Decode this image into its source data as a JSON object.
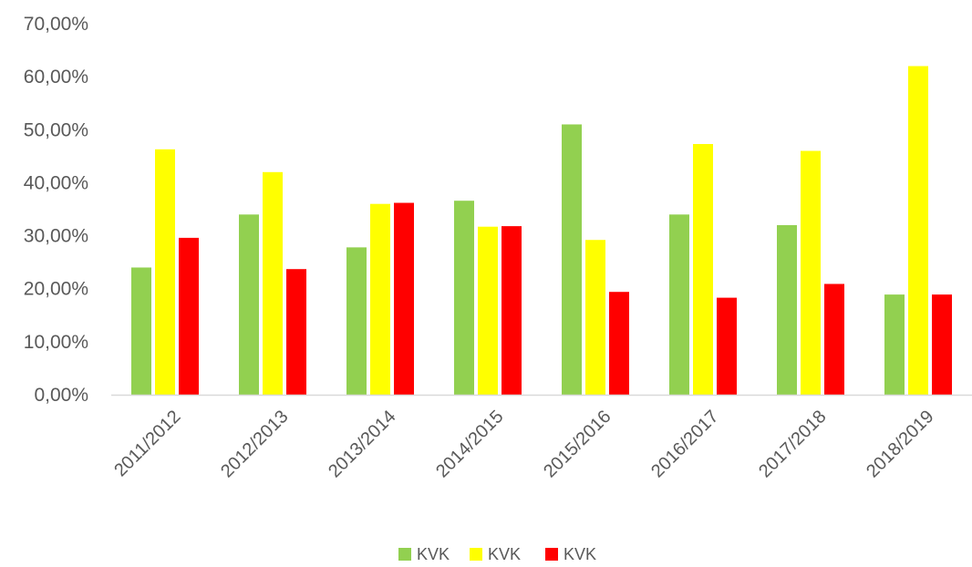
{
  "chart_data": {
    "type": "bar",
    "categories": [
      "2011/2012",
      "2012/2013",
      "2013/2014",
      "2014/2015",
      "2015/2016",
      "2016/2017",
      "2017/2018",
      "2018/2019"
    ],
    "series": [
      {
        "name": "KVK",
        "color": "#92d050",
        "values": [
          24.0,
          34.0,
          27.8,
          36.6,
          51.0,
          34.0,
          32.0,
          18.9
        ]
      },
      {
        "name": "KVK",
        "color": "#ffff00",
        "values": [
          46.3,
          42.0,
          36.0,
          31.7,
          29.2,
          47.3,
          46.0,
          62.0
        ]
      },
      {
        "name": "KVK",
        "color": "#ff0000",
        "values": [
          29.6,
          23.7,
          36.2,
          31.8,
          19.4,
          18.3,
          20.9,
          18.9
        ]
      }
    ],
    "yticks": [
      "0,00%",
      "10,00%",
      "20,00%",
      "30,00%",
      "40,00%",
      "50,00%",
      "60,00%",
      "70,00%"
    ],
    "ylim": [
      0,
      70
    ],
    "title": "",
    "xlabel": "",
    "ylabel": "",
    "grid": false,
    "legend_position": "bottom"
  }
}
